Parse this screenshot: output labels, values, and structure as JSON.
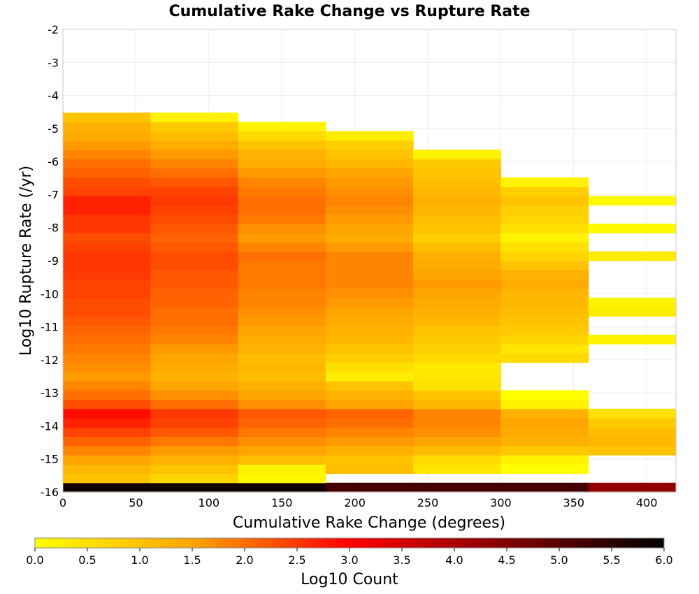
{
  "chart_data": {
    "type": "heatmap",
    "title": "Cumulative Rake Change vs Rupture Rate",
    "xlabel": "Cumulative Rake Change (degrees)",
    "ylabel": "Log10 Rupture Rate (/yr)",
    "xlim": [
      0,
      420
    ],
    "ylim": [
      -16,
      -2
    ],
    "x_ticks": [
      0,
      50,
      100,
      150,
      200,
      250,
      300,
      350,
      400
    ],
    "y_ticks": [
      -2,
      -3,
      -4,
      -5,
      -6,
      -7,
      -8,
      -9,
      -10,
      -11,
      -12,
      -13,
      -14,
      -15,
      -16
    ],
    "grid": true,
    "x_bins": [
      [
        0,
        60
      ],
      [
        60,
        120
      ],
      [
        120,
        180
      ],
      [
        180,
        240
      ],
      [
        240,
        300
      ],
      [
        300,
        360
      ],
      [
        360,
        420
      ]
    ],
    "y_bin_width": 0.28,
    "y_start": -16.0,
    "values": [
      [
        5.8,
        5.8,
        5.8,
        5.2,
        5.2,
        5.2,
        4.3
      ],
      [
        1.0,
        0.7,
        0.1,
        null,
        null,
        null,
        null
      ],
      [
        1.2,
        1.0,
        0.2,
        1.1,
        0.4,
        0.0,
        null
      ],
      [
        1.5,
        1.3,
        1.1,
        1.0,
        0.6,
        0.2,
        null
      ],
      [
        1.8,
        1.6,
        1.5,
        1.3,
        1.1,
        0.9,
        1.0
      ],
      [
        2.1,
        1.9,
        1.7,
        1.6,
        1.5,
        1.3,
        1.2
      ],
      [
        2.4,
        2.2,
        1.9,
        1.8,
        1.7,
        1.4,
        1.1
      ],
      [
        2.7,
        2.4,
        2.1,
        2.0,
        1.8,
        1.5,
        0.9
      ],
      [
        2.9,
        2.5,
        2.2,
        2.1,
        1.8,
        1.3,
        0.5
      ],
      [
        2.3,
        2.0,
        1.7,
        1.5,
        1.2,
        0.2,
        null
      ],
      [
        2.0,
        1.7,
        1.5,
        1.3,
        1.0,
        0.0,
        null
      ],
      [
        1.8,
        1.5,
        1.3,
        1.0,
        0.5,
        null,
        null
      ],
      [
        1.6,
        1.3,
        1.1,
        0.3,
        0.4,
        null,
        null
      ],
      [
        1.7,
        1.4,
        1.2,
        0.5,
        0.4,
        null,
        null
      ],
      [
        1.8,
        1.5,
        1.1,
        0.8,
        0.6,
        0.6,
        null
      ],
      [
        1.9,
        1.6,
        1.3,
        1.0,
        0.8,
        0.4,
        null
      ],
      [
        2.0,
        1.8,
        1.4,
        1.2,
        0.9,
        0.7,
        0.2
      ],
      [
        2.1,
        1.9,
        1.5,
        1.3,
        1.0,
        0.9,
        null
      ],
      [
        2.2,
        2.0,
        1.6,
        1.4,
        1.2,
        1.0,
        null
      ],
      [
        2.3,
        2.0,
        1.7,
        1.5,
        1.3,
        1.1,
        0.3
      ],
      [
        2.3,
        2.1,
        1.8,
        1.6,
        1.4,
        1.2,
        0.2
      ],
      [
        2.4,
        2.1,
        1.8,
        1.7,
        1.5,
        1.2,
        null
      ],
      [
        2.4,
        2.2,
        1.9,
        1.8,
        1.6,
        1.4,
        null
      ],
      [
        2.5,
        2.2,
        1.9,
        1.8,
        1.5,
        1.3,
        null
      ],
      [
        2.5,
        2.3,
        1.9,
        1.8,
        1.4,
        1.0,
        null
      ],
      [
        2.5,
        2.3,
        2.0,
        1.8,
        1.3,
        0.7,
        0.3
      ],
      [
        2.4,
        2.2,
        1.8,
        1.6,
        1.1,
        0.5,
        null
      ],
      [
        2.3,
        2.1,
        1.6,
        1.4,
        0.8,
        0.2,
        null
      ],
      [
        2.5,
        2.2,
        1.7,
        1.5,
        1.0,
        0.5,
        0.1
      ],
      [
        2.5,
        2.3,
        1.9,
        1.6,
        1.1,
        0.7,
        null
      ],
      [
        2.7,
        2.4,
        2.0,
        1.7,
        1.2,
        0.8,
        null
      ],
      [
        2.7,
        2.5,
        2.0,
        1.8,
        1.3,
        1.0,
        0.1
      ],
      [
        2.4,
        2.4,
        1.9,
        1.7,
        1.2,
        0.8,
        null
      ],
      [
        2.3,
        2.2,
        1.8,
        1.6,
        1.1,
        0.2,
        null
      ],
      [
        2.1,
        2.0,
        1.6,
        1.5,
        1.0,
        null,
        null
      ],
      [
        2.0,
        1.8,
        1.4,
        1.2,
        0.9,
        null,
        null
      ],
      [
        1.8,
        1.6,
        1.3,
        1.0,
        0.2,
        null,
        null
      ],
      [
        1.6,
        1.4,
        1.0,
        0.8,
        null,
        null,
        null
      ],
      [
        1.4,
        1.1,
        0.6,
        0.3,
        null,
        null,
        null
      ],
      [
        1.3,
        0.9,
        0.2,
        null,
        null,
        null,
        null
      ],
      [
        1.0,
        0.2,
        null,
        null,
        null,
        null,
        null
      ]
    ],
    "colorbar": {
      "label": "Log10 Count",
      "min": 0.0,
      "max": 6.0,
      "ticks": [
        "0.0",
        "0.5",
        "1.0",
        "1.5",
        "2.0",
        "2.5",
        "3.0",
        "3.5",
        "4.0",
        "4.5",
        "5.0",
        "5.5",
        "6.0"
      ],
      "colors": [
        "#ffff00",
        "#ffa500",
        "#ff0000",
        "#800000",
        "#000000"
      ]
    }
  }
}
